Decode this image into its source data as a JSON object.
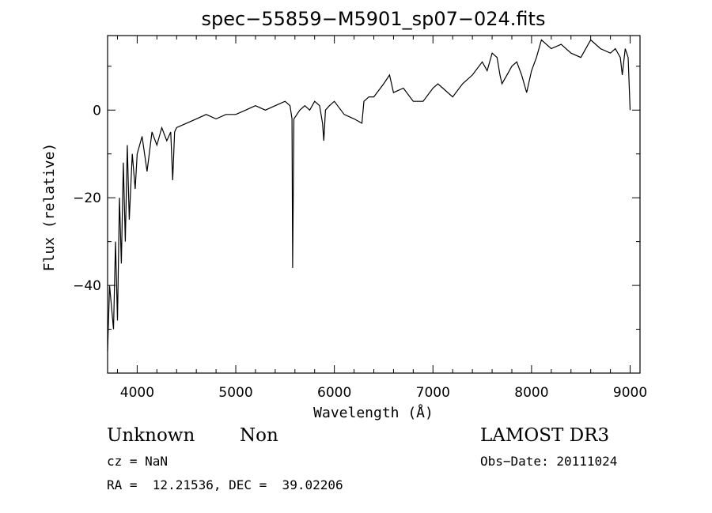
{
  "chart_data": {
    "type": "line",
    "title": "spec−55859−M5901_sp07−024.fits",
    "xlabel": "Wavelength (Å)",
    "ylabel": "Flux (relative)",
    "xlim": [
      3700,
      9100
    ],
    "ylim": [
      -60,
      17
    ],
    "x_ticks": [
      4000,
      5000,
      6000,
      7000,
      8000,
      9000
    ],
    "y_ticks": [
      0,
      -20,
      -40
    ],
    "x_tick_labels": [
      "4000",
      "5000",
      "6000",
      "7000",
      "8000",
      "9000"
    ],
    "y_tick_labels": [
      "0",
      "−20",
      "−40"
    ],
    "grid": false,
    "series": [
      {
        "x": [
          3700,
          3720,
          3740,
          3760,
          3780,
          3800,
          3820,
          3840,
          3860,
          3880,
          3900,
          3920,
          3950,
          3980,
          4000,
          4050,
          4100,
          4150,
          4200,
          4250,
          4300,
          4340,
          4360,
          4380,
          4400,
          4500,
          4600,
          4700,
          4800,
          4900,
          5000,
          5100,
          5200,
          5300,
          5400,
          5500,
          5550,
          5570,
          5577,
          5590,
          5650,
          5700,
          5750,
          5800,
          5850,
          5880,
          5893,
          5910,
          5950,
          6000,
          6100,
          6200,
          6280,
          6300,
          6350,
          6400,
          6500,
          6560,
          6600,
          6700,
          6800,
          6900,
          7000,
          7050,
          7100,
          7200,
          7300,
          7400,
          7500,
          7550,
          7600,
          7650,
          7680,
          7700,
          7750,
          7800,
          7850,
          7900,
          7950,
          8000,
          8050,
          8100,
          8200,
          8300,
          8400,
          8500,
          8600,
          8700,
          8800,
          8850,
          8900,
          8920,
          8950,
          8980,
          9000
        ],
        "values": [
          -55,
          -40,
          -45,
          -50,
          -30,
          -48,
          -20,
          -35,
          -12,
          -30,
          -8,
          -25,
          -10,
          -18,
          -10,
          -6,
          -14,
          -5,
          -8,
          -4,
          -7,
          -5,
          -16,
          -5,
          -4,
          -3,
          -2,
          -1,
          -2,
          -1,
          -1,
          0,
          1,
          0,
          1,
          2,
          1,
          -2,
          -36,
          -2,
          0,
          1,
          0,
          2,
          1,
          -3,
          -7,
          0,
          1,
          2,
          -1,
          -2,
          -3,
          2,
          3,
          3,
          6,
          8,
          4,
          5,
          2,
          2,
          5,
          6,
          5,
          3,
          6,
          8,
          11,
          9,
          13,
          12,
          8,
          6,
          8,
          10,
          11,
          8,
          4,
          9,
          12,
          16,
          14,
          15,
          13,
          12,
          16,
          14,
          13,
          14,
          12,
          8,
          14,
          12,
          0
        ]
      }
    ]
  },
  "footer": {
    "object_class": "Unknown",
    "object_subclass": "Non",
    "survey": "LAMOST DR3",
    "cz": "cz = NaN",
    "obs_date": "Obs−Date: 20111024",
    "coords": "RA =  12.21536, DEC =  39.02206"
  }
}
